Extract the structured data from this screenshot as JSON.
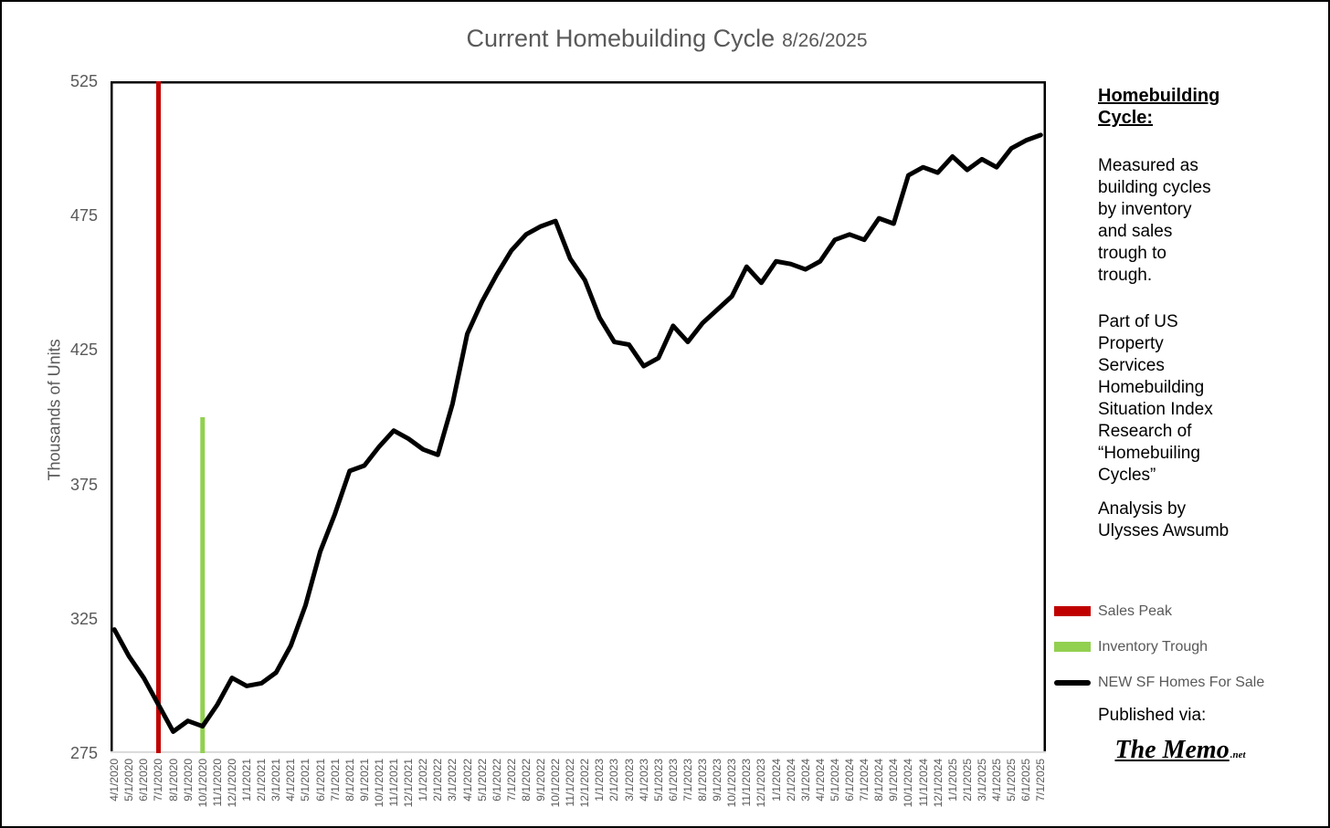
{
  "title": "Current Homebuilding Cycle",
  "title_date": "8/26/2025",
  "y_axis_title": "Thousands of Units",
  "sidebar": {
    "heading": "Homebuilding\nCycle:",
    "para1": "Measured as\nbuilding cycles\nby inventory\nand sales\ntrough to\ntrough.",
    "para2": "Part of US\nProperty\nServices\nHomebuilding\nSituation Index\nResearch of\n“Homebuiling\nCycles”",
    "para3": "Analysis by\nUlysses Awsumb"
  },
  "legend": {
    "items": [
      {
        "label": "Sales Peak",
        "color": "#C00000",
        "swatch": "bar"
      },
      {
        "label": "Inventory Trough",
        "color": "#92D050",
        "swatch": "bar"
      },
      {
        "label": "NEW SF Homes For Sale",
        "color": "#000000",
        "swatch": "line"
      }
    ]
  },
  "footer": {
    "published_via": "Published via:",
    "logo_text": "The Memo",
    "logo_suffix": ".net"
  },
  "chart_data": {
    "type": "line",
    "title": "Current Homebuilding Cycle 8/26/2025",
    "xlabel": "",
    "ylabel": "Thousands of Units",
    "ylim": [
      275,
      525
    ],
    "y_ticks": [
      275,
      325,
      375,
      425,
      475,
      525
    ],
    "grid": false,
    "legend_position": "right-bottom",
    "x": [
      "4/1/2020",
      "5/1/2020",
      "6/1/2020",
      "7/1/2020",
      "8/1/2020",
      "9/1/2020",
      "10/1/2020",
      "11/1/2020",
      "12/1/2020",
      "1/1/2021",
      "2/1/2021",
      "3/1/2021",
      "4/1/2021",
      "5/1/2021",
      "6/1/2021",
      "7/1/2021",
      "8/1/2021",
      "9/1/2021",
      "10/1/2021",
      "11/1/2021",
      "12/1/2021",
      "1/1/2022",
      "2/1/2022",
      "3/1/2022",
      "4/1/2022",
      "5/1/2022",
      "6/1/2022",
      "7/1/2022",
      "8/1/2022",
      "9/1/2022",
      "10/1/2022",
      "11/1/2022",
      "12/1/2022",
      "1/1/2023",
      "2/1/2023",
      "3/1/2023",
      "4/1/2023",
      "5/1/2023",
      "6/1/2023",
      "7/1/2023",
      "8/1/2023",
      "9/1/2023",
      "10/1/2023",
      "11/1/2023",
      "12/1/2023",
      "1/1/2024",
      "2/1/2024",
      "3/1/2024",
      "4/1/2024",
      "5/1/2024",
      "6/1/2024",
      "7/1/2024",
      "8/1/2024",
      "9/1/2024",
      "10/1/2024",
      "11/1/2024",
      "12/1/2024",
      "1/1/2025",
      "2/1/2025",
      "3/1/2025",
      "4/1/2025",
      "5/1/2025",
      "6/1/2025",
      "7/1/2025"
    ],
    "series": [
      {
        "name": "NEW SF Homes For Sale",
        "color": "#000000",
        "values": [
          321,
          311,
          303,
          293,
          283,
          287,
          285,
          293,
          303,
          300,
          301,
          305,
          315,
          330,
          350,
          364,
          380,
          382,
          389,
          395,
          392,
          388,
          386,
          405,
          431,
          443,
          453,
          462,
          468,
          471,
          473,
          459,
          451,
          437,
          428,
          427,
          419,
          422,
          434,
          428,
          435,
          440,
          445,
          456,
          450,
          458,
          457,
          455,
          458,
          466,
          468,
          466,
          474,
          472,
          490,
          493,
          491,
          497,
          492,
          496,
          493,
          500,
          503,
          505
        ]
      }
    ],
    "annotations": [
      {
        "type": "vline",
        "label": "Sales Peak",
        "x": "7/1/2020",
        "x_index": 3,
        "color": "#C00000",
        "y_span": [
          275,
          525
        ]
      },
      {
        "type": "vline",
        "label": "Inventory Trough",
        "x": "10/1/2020",
        "x_index": 6,
        "color": "#92D050",
        "y_span": [
          275,
          400
        ]
      }
    ]
  }
}
